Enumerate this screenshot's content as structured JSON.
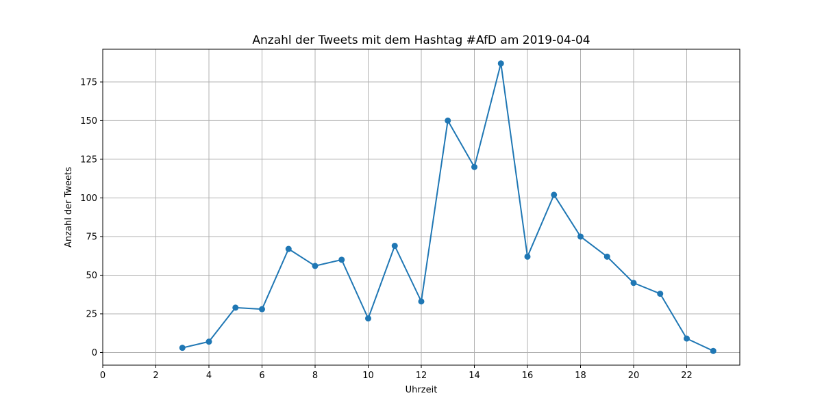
{
  "chart_data": {
    "type": "line",
    "title": "Anzahl der Tweets mit dem Hashtag #AfD am 2019-04-04",
    "xlabel": "Uhrzeit",
    "ylabel": "Anzahl der Tweets",
    "x": [
      3,
      4,
      5,
      6,
      7,
      8,
      9,
      10,
      11,
      12,
      13,
      14,
      15,
      16,
      17,
      18,
      19,
      20,
      21,
      22,
      23
    ],
    "series": [
      {
        "values": [
          3,
          7,
          29,
          28,
          67,
          56,
          60,
          22,
          69,
          33,
          150,
          120,
          187,
          62,
          102,
          75,
          62,
          45,
          38,
          9,
          1
        ],
        "color": "#1f77b4",
        "marker": "circle"
      }
    ],
    "xlim": [
      0,
      24
    ],
    "ylim": [
      -8.2,
      196.2
    ],
    "xticks": [
      "0",
      "2",
      "4",
      "6",
      "8",
      "10",
      "12",
      "14",
      "16",
      "18",
      "20",
      "22"
    ],
    "yticks": [
      "0",
      "25",
      "50",
      "75",
      "100",
      "125",
      "150",
      "175"
    ],
    "grid": true,
    "legend": "none"
  }
}
